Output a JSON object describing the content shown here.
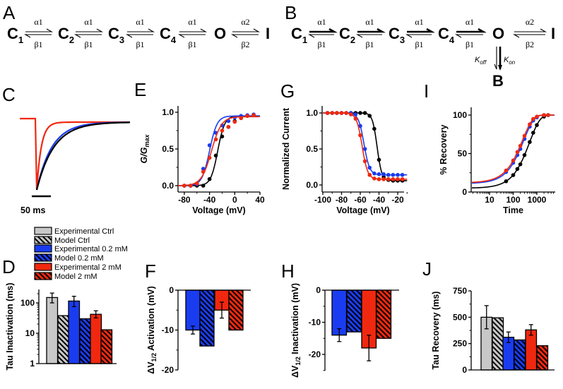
{
  "panel_labels": {
    "A": "A",
    "B": "B",
    "C": "C",
    "D": "D",
    "E": "E",
    "F": "F",
    "G": "G",
    "H": "H",
    "I": "I",
    "J": "J"
  },
  "colors": {
    "ctrl": "#000000",
    "low": "#1a3cf0",
    "high": "#f0280f",
    "ctrl_bar": "#c8c8c8",
    "low_bar": "#1a3cf0",
    "high_bar": "#f0280f"
  },
  "schemes": {
    "A": {
      "states": [
        "C",
        "C",
        "C",
        "C",
        "O",
        "I"
      ],
      "subscripts": [
        "1",
        "2",
        "3",
        "4",
        "",
        ""
      ],
      "forward": [
        "α1",
        "α1",
        "α1",
        "α1",
        "α2"
      ],
      "backward": [
        "β1",
        "β1",
        "β1",
        "β1",
        "β2"
      ]
    },
    "B": {
      "states": [
        "C",
        "C",
        "C",
        "C",
        "O",
        "I"
      ],
      "subscripts": [
        "1",
        "2",
        "3",
        "4",
        "",
        ""
      ],
      "forward": [
        "α1",
        "α1",
        "α1",
        "α1",
        "α2"
      ],
      "backward": [
        "β1",
        "β1",
        "β1",
        "β1",
        "β2"
      ],
      "k_off": "K",
      "k_off_sub": "off",
      "k_on": "K",
      "k_on_sub": "on",
      "blocked_state": "B"
    }
  },
  "legend": [
    {
      "label": "Experimental Ctrl",
      "group": "ctrl",
      "hatched": false
    },
    {
      "label": "Model Ctrl",
      "group": "ctrl",
      "hatched": true
    },
    {
      "label": "Experimental 0.2 mM",
      "group": "low",
      "hatched": false
    },
    {
      "label": "Model 0.2 mM",
      "group": "low",
      "hatched": true
    },
    {
      "label": "Experimental 2 mM",
      "group": "high",
      "hatched": false
    },
    {
      "label": "Model 2 mM",
      "group": "high",
      "hatched": true
    }
  ],
  "chart_data": [
    {
      "panel": "C",
      "type": "line",
      "title": "",
      "scale_bar": "50 ms",
      "series": [
        {
          "name": "Ctrl",
          "group": "ctrl",
          "tau_ms": 45
        },
        {
          "name": "0.2 mM",
          "group": "low",
          "tau_ms": 40
        },
        {
          "name": "2 mM",
          "group": "high",
          "tau_ms": 12
        }
      ]
    },
    {
      "panel": "E",
      "type": "line",
      "xlabel": "Voltage (mV)",
      "ylabel": "G/G",
      "ylabel_sub": "max",
      "xlim": [
        -90,
        40
      ],
      "ylim": [
        0,
        1
      ],
      "xticks": [
        "-80",
        "-40",
        "0",
        "40"
      ],
      "yticks": [
        "0.0",
        "0.5",
        "1.0"
      ],
      "x": [
        -80,
        -70,
        -60,
        -50,
        -40,
        -30,
        -20,
        -10,
        0,
        10,
        20,
        30
      ],
      "series": [
        {
          "name": "Ctrl",
          "group": "ctrl",
          "values": [
            0,
            0,
            0,
            0,
            0.09,
            0.41,
            0.67,
            0.8,
            0.88,
            0.92,
            0.95,
            0.96
          ],
          "fit": {
            "v_half": -27,
            "k": 5.5,
            "max": 0.95
          }
        },
        {
          "name": "0.2 mM",
          "group": "low",
          "values": [
            0,
            0,
            0.02,
            0.23,
            0.55,
            0.72,
            0.82,
            0.88,
            0.93,
            0.95,
            0.96,
            0.97
          ],
          "fit": {
            "v_half": -40,
            "k": 6,
            "max": 0.95
          }
        },
        {
          "name": "2 mM",
          "group": "high",
          "values": [
            0,
            0,
            0.03,
            0.19,
            0.38,
            0.63,
            0.75,
            0.8,
            0.87,
            0.92,
            0.95,
            0.96
          ],
          "fit": {
            "v_half": -37,
            "k": 8,
            "max": 0.94
          }
        }
      ]
    },
    {
      "panel": "G",
      "type": "line",
      "xlabel": "Voltage (mV)",
      "ylabel": "Normalized Current",
      "xlim": [
        -100,
        -10
      ],
      "ylim": [
        0,
        1
      ],
      "xticks": [
        "-100",
        "-80",
        "-60",
        "-40",
        "-20"
      ],
      "yticks": [
        "0.0",
        "0.5",
        "1.0"
      ],
      "x": [
        -95,
        -90,
        -85,
        -80,
        -75,
        -70,
        -65,
        -60,
        -55,
        -50,
        -45,
        -40,
        -35,
        -30,
        -25,
        -20,
        -15
      ],
      "series": [
        {
          "name": "Ctrl",
          "group": "ctrl",
          "values": [
            1,
            1,
            1,
            1,
            1,
            1,
            1,
            1,
            1,
            0.96,
            0.78,
            0.35,
            0.11,
            0.07,
            0.06,
            0.06,
            0.06
          ],
          "fit": {
            "v_half": -42,
            "k": 2.5,
            "c": 0.06
          }
        },
        {
          "name": "0.2 mM",
          "group": "low",
          "values": [
            1,
            1,
            1,
            1,
            1,
            1,
            0.98,
            0.82,
            0.5,
            0.24,
            0.16,
            0.15,
            0.15,
            0.14,
            0.14,
            0.14,
            0.14
          ],
          "fit": {
            "v_half": -56,
            "k": 3,
            "c": 0.14
          }
        },
        {
          "name": "2 mM",
          "group": "high",
          "values": [
            1,
            1,
            1,
            1,
            1,
            0.98,
            0.92,
            0.69,
            0.33,
            0.14,
            0.09,
            0.08,
            0.08,
            0.08,
            0.08,
            0.08,
            0.08
          ],
          "fit": {
            "v_half": -58,
            "k": 3,
            "c": 0.08
          }
        }
      ]
    },
    {
      "panel": "I",
      "type": "line",
      "xscale": "log",
      "xlabel": "Time",
      "ylabel": "% Recovery",
      "xlim": [
        1.7,
        6000
      ],
      "ylim": [
        0,
        100
      ],
      "xticks": [
        "10",
        "100",
        "1000"
      ],
      "yticks": [
        "0",
        "50",
        "100"
      ],
      "x": [
        50,
        100,
        150,
        200,
        300,
        500,
        700,
        1000,
        2000,
        3000
      ],
      "series": [
        {
          "name": "Ctrl",
          "group": "ctrl",
          "values": [
            14,
            22,
            30,
            36,
            48,
            65,
            77,
            87,
            98,
            100
          ],
          "fit": {
            "tau": 500,
            "r0": 5
          }
        },
        {
          "name": "0.2 mM",
          "group": "low",
          "values": [
            26,
            38,
            48,
            56,
            69,
            85,
            93,
            97,
            100,
            100
          ],
          "fit": {
            "tau": 280,
            "r0": 11
          }
        },
        {
          "name": "2 mM",
          "group": "high",
          "values": [
            28,
            41,
            52,
            60,
            73,
            88,
            95,
            98,
            100,
            100
          ],
          "fit": {
            "tau": 250,
            "r0": 12
          }
        }
      ]
    },
    {
      "panel": "D",
      "type": "bar",
      "yscale": "log",
      "ylabel": "Tau Inactivation (ms)",
      "ylim": [
        1,
        250
      ],
      "yticks": [
        "1",
        "10",
        "100"
      ],
      "categories": [
        "Experimental Ctrl",
        "Model Ctrl",
        "Experimental 0.2 mM",
        "Model 0.2 mM",
        "Experimental 2 mM",
        "Model 2 mM"
      ],
      "values": [
        150,
        38,
        115,
        30,
        42,
        13
      ],
      "error_low": [
        100,
        null,
        75,
        null,
        32,
        null
      ],
      "error_high": [
        210,
        null,
        165,
        null,
        55,
        null
      ]
    },
    {
      "panel": "F",
      "type": "bar",
      "ylabel": "ΔV",
      "ylabel_sub": "1/2",
      "ylabel_rest": " Activation (mV)",
      "ylim": [
        -20,
        0
      ],
      "yticks": [
        "0",
        "-10",
        "-20"
      ],
      "categories": [
        "Experimental 0.2 mM",
        "Model 0.2 mM",
        "Experimental 2 mM",
        "Model 2 mM"
      ],
      "values": [
        -10,
        -14,
        -5,
        -10
      ],
      "error": [
        1,
        null,
        2,
        null
      ]
    },
    {
      "panel": "H",
      "type": "bar",
      "ylabel": "ΔV",
      "ylabel_sub": "1/2",
      "ylabel_rest": " Inactivation (mV)",
      "ylim": [
        -25,
        0
      ],
      "yticks": [
        "0",
        "-10",
        "-20"
      ],
      "categories": [
        "Experimental 0.2 mM",
        "Model 0.2 mM",
        "Experimental 2 mM",
        "Model 2 mM"
      ],
      "values": [
        -14,
        -13,
        -18,
        -15
      ],
      "error": [
        2,
        null,
        4,
        null
      ]
    },
    {
      "panel": "J",
      "type": "bar",
      "ylabel": "Tau Recovery (ms)",
      "ylim": [
        0,
        750
      ],
      "yticks": [
        "0",
        "250",
        "500",
        "750"
      ],
      "categories": [
        "Experimental Ctrl",
        "Model Ctrl",
        "Experimental 0.2 mM",
        "Model 0.2 mM",
        "Experimental 2 mM",
        "Model 2 mM"
      ],
      "values": [
        500,
        495,
        310,
        285,
        380,
        230
      ],
      "error": [
        110,
        null,
        50,
        null,
        50,
        null
      ]
    }
  ]
}
